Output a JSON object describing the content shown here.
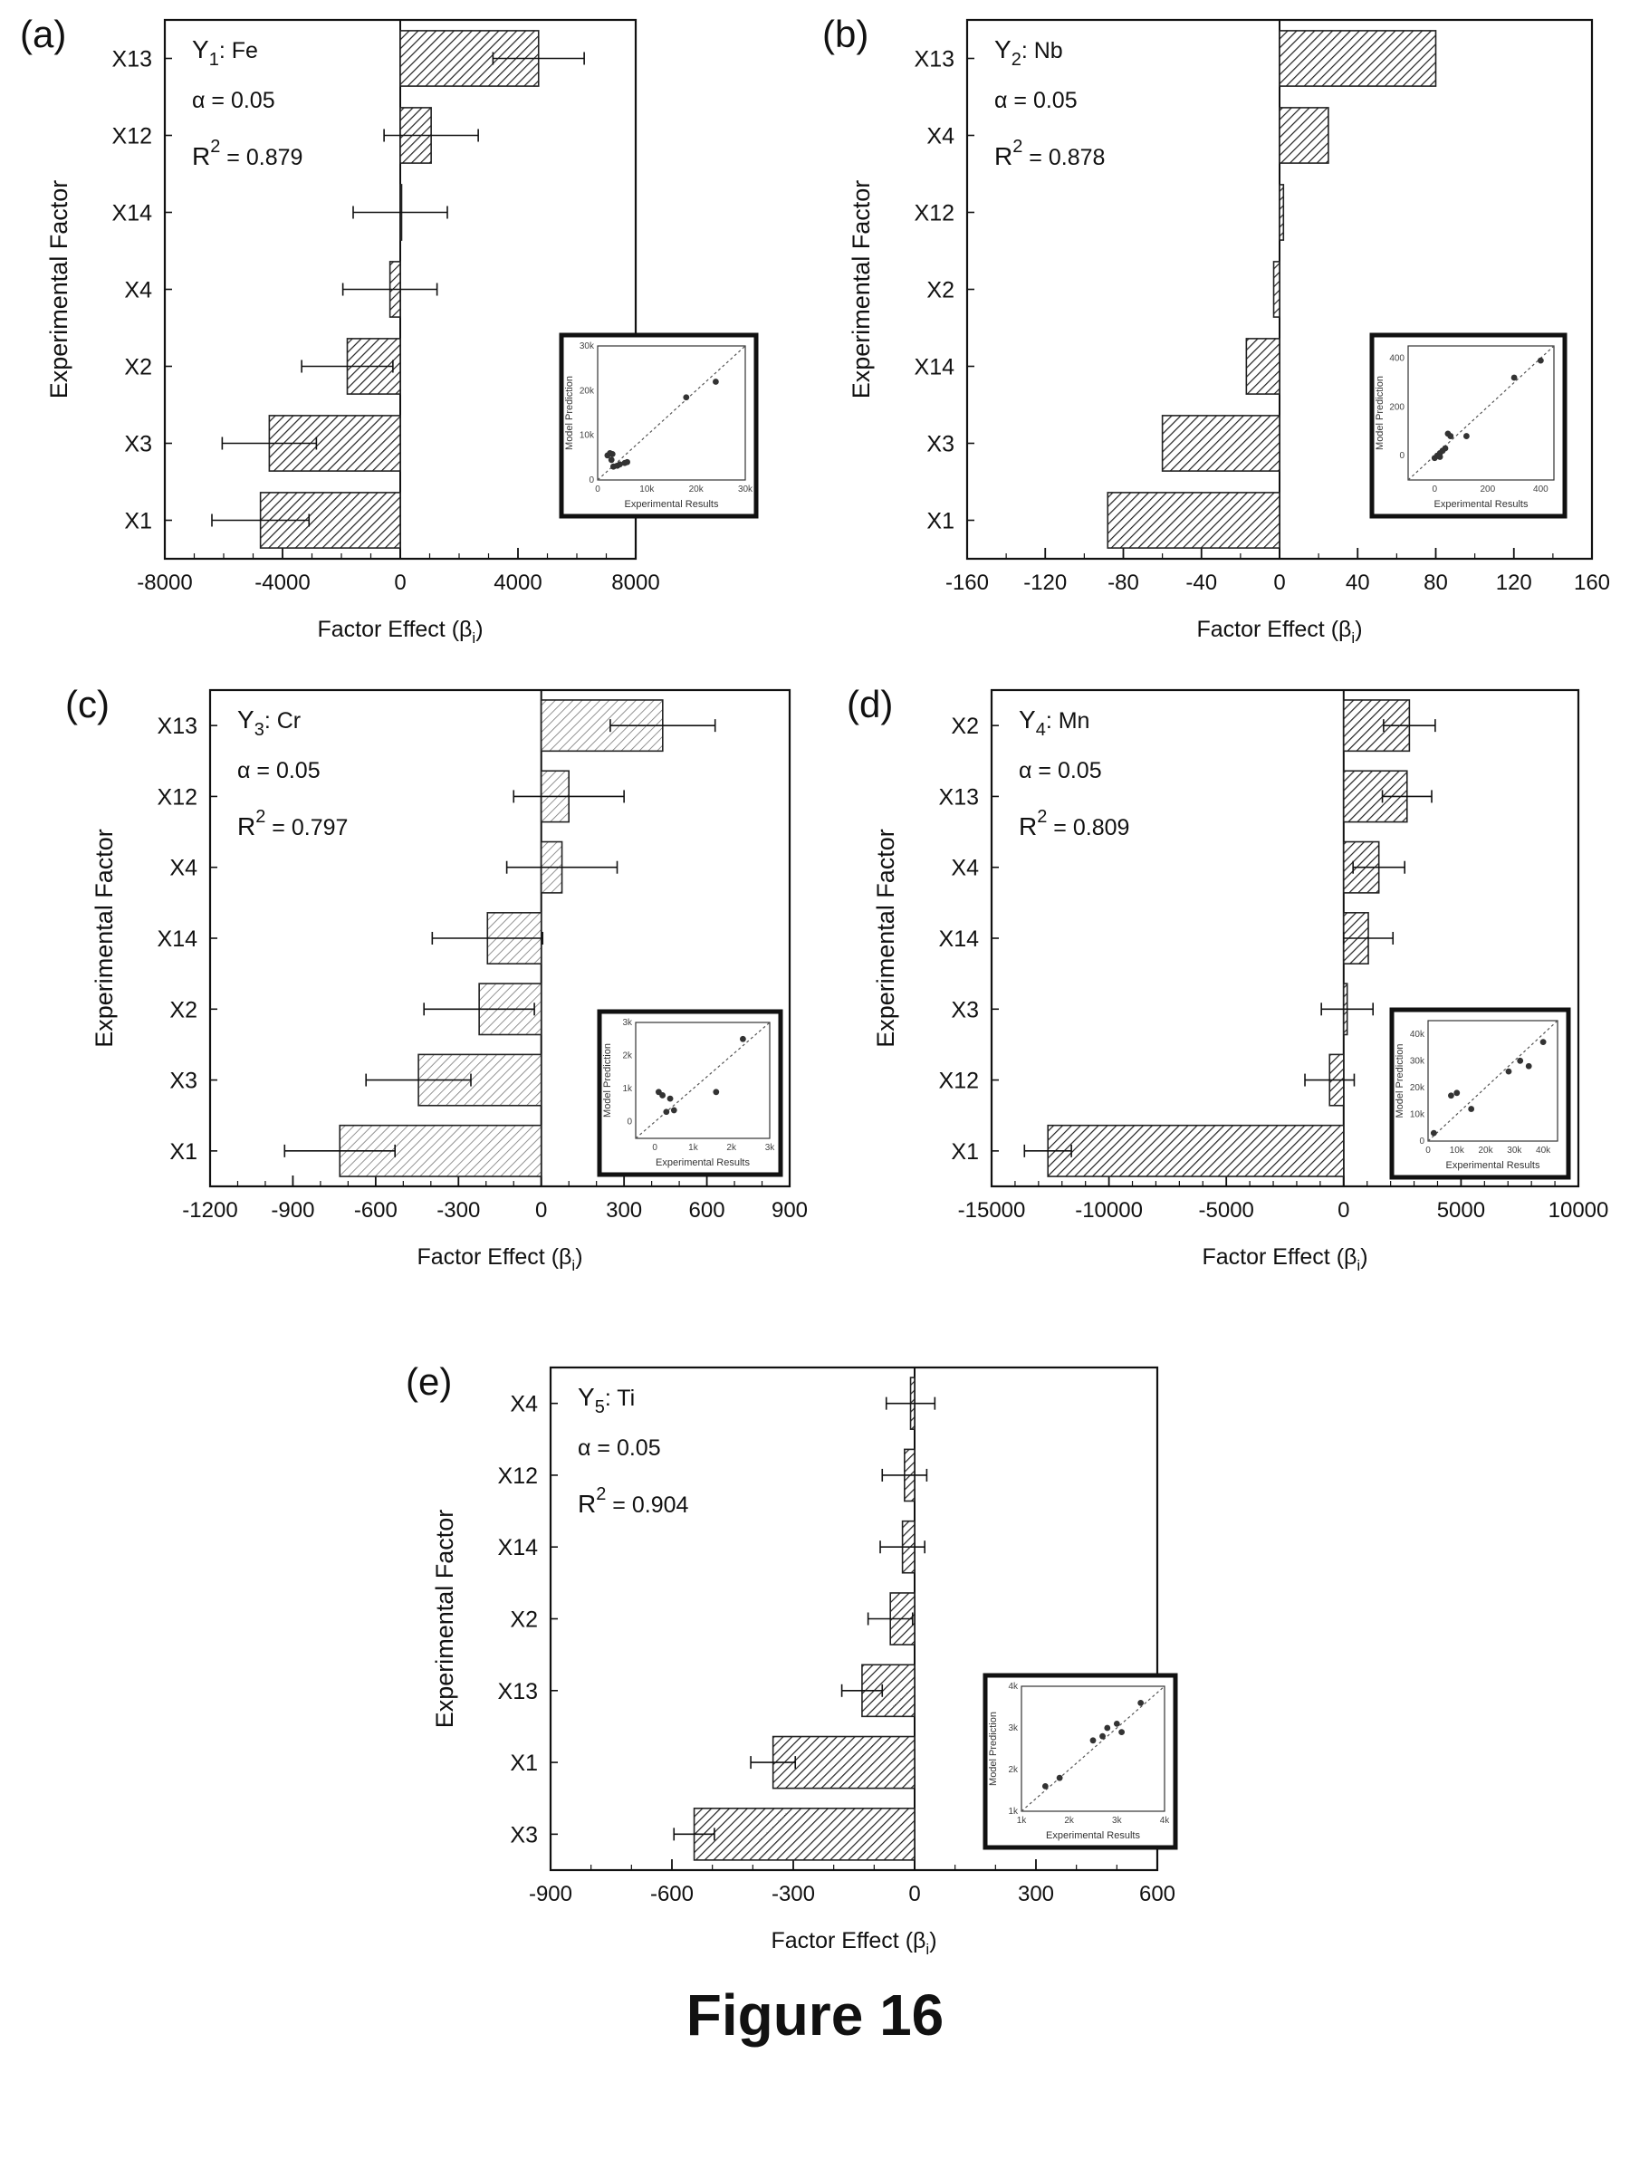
{
  "figure_caption": "Figure 16",
  "inset_labels": {
    "xlabel": "Experimental Results",
    "ylabel": "Model Prediction"
  },
  "chart_data": [
    {
      "panel": "(a)",
      "type": "bar",
      "orientation": "horizontal",
      "title_main": "Y",
      "title_sub": "1",
      "title_suffix": ": Fe",
      "alpha_text": "α = 0.05",
      "r2_main": "R",
      "r2_sup": "2",
      "r2_suffix": " = 0.879",
      "xlabel": "Factor Effect (β",
      "xlabel_sub": "i",
      "xlabel_end": ")",
      "ylabel": "Experimental Factor",
      "categories": [
        "X13",
        "X12",
        "X14",
        "X4",
        "X2",
        "X3",
        "X1"
      ],
      "values": [
        4700,
        1050,
        0,
        -350,
        -1800,
        -4450,
        -4750
      ],
      "errors": [
        1550,
        1600,
        1600,
        1600,
        1550,
        1600,
        1650
      ],
      "xlim": [
        -8000,
        8000
      ],
      "xticks": [
        -8000,
        -4000,
        0,
        4000,
        8000
      ],
      "xtick_labels": [
        "-8000",
        "-4000",
        "0",
        "4000",
        "8000"
      ],
      "minor_step": 1000,
      "inset": {
        "xlim": [
          0,
          30000
        ],
        "ylim": [
          0,
          30000
        ],
        "xticks": [
          0,
          10000,
          20000,
          30000
        ],
        "xtick_labels": [
          "0",
          "10k",
          "20k",
          "30k"
        ],
        "yticks": [
          0,
          10000,
          20000,
          30000
        ],
        "ytick_labels": [
          "0",
          "10k",
          "20k",
          "30k"
        ],
        "points": [
          [
            2000,
            5500
          ],
          [
            2500,
            6000
          ],
          [
            3000,
            5800
          ],
          [
            2800,
            4500
          ],
          [
            3200,
            3000
          ],
          [
            4000,
            3200
          ],
          [
            4500,
            3500
          ],
          [
            5500,
            3800
          ],
          [
            6000,
            4000
          ],
          [
            18000,
            18500
          ],
          [
            24000,
            22000
          ]
        ]
      }
    },
    {
      "panel": "(b)",
      "type": "bar",
      "orientation": "horizontal",
      "title_main": "Y",
      "title_sub": "2",
      "title_suffix": ": Nb",
      "alpha_text": "α = 0.05",
      "r2_main": "R",
      "r2_sup": "2",
      "r2_suffix": " = 0.878",
      "xlabel": "Factor Effect (β",
      "xlabel_sub": "i",
      "xlabel_end": ")",
      "ylabel": "Experimental Factor",
      "categories": [
        "X13",
        "X4",
        "X12",
        "X2",
        "X14",
        "X3",
        "X1"
      ],
      "values": [
        80,
        25,
        2,
        -3,
        -17,
        -60,
        -88
      ],
      "errors": [],
      "xlim": [
        -160,
        160
      ],
      "xticks": [
        -160,
        -120,
        -80,
        -40,
        0,
        40,
        80,
        120,
        160
      ],
      "xtick_labels": [
        "-160",
        "-120",
        "-80",
        "-40",
        "0",
        "40",
        "80",
        "120",
        "160"
      ],
      "minor_step": 20,
      "inset": {
        "xlim": [
          -100,
          450
        ],
        "ylim": [
          -100,
          450
        ],
        "xticks": [
          0,
          200,
          400
        ],
        "xtick_labels": [
          "0",
          "200",
          "400"
        ],
        "yticks": [
          0,
          200,
          400
        ],
        "ytick_labels": [
          "0",
          "200",
          "400"
        ],
        "points": [
          [
            0,
            -10
          ],
          [
            10,
            0
          ],
          [
            20,
            10
          ],
          [
            30,
            20
          ],
          [
            20,
            -5
          ],
          [
            40,
            30
          ],
          [
            50,
            90
          ],
          [
            60,
            80
          ],
          [
            120,
            80
          ],
          [
            300,
            320
          ],
          [
            400,
            390
          ]
        ]
      }
    },
    {
      "panel": "(c)",
      "type": "bar",
      "orientation": "horizontal",
      "title_main": "Y",
      "title_sub": "3",
      "title_suffix": ": Cr",
      "alpha_text": "α = 0.05",
      "r2_main": "R",
      "r2_sup": "2",
      "r2_suffix": " = 0.797",
      "xlabel": "Factor Effect (β",
      "xlabel_sub": "i",
      "xlabel_end": ")",
      "ylabel": "Experimental Factor",
      "categories": [
        "X13",
        "X12",
        "X4",
        "X14",
        "X2",
        "X3",
        "X1"
      ],
      "values": [
        440,
        100,
        75,
        -195,
        -225,
        -445,
        -730
      ],
      "errors": [
        190,
        200,
        200,
        200,
        200,
        190,
        200
      ],
      "xlim": [
        -1200,
        900
      ],
      "xticks": [
        -1200,
        -900,
        -600,
        -300,
        0,
        300,
        600,
        900
      ],
      "xtick_labels": [
        "-1200",
        "-900",
        "-600",
        "-300",
        "0",
        "300",
        "600",
        "900"
      ],
      "minor_step": 100,
      "inset": {
        "xlim": [
          -500,
          3000
        ],
        "ylim": [
          -500,
          3000
        ],
        "xticks": [
          0,
          1000,
          2000,
          3000
        ],
        "xtick_labels": [
          "0",
          "1k",
          "2k",
          "3k"
        ],
        "yticks": [
          0,
          1000,
          2000,
          3000
        ],
        "ytick_labels": [
          "0",
          "1k",
          "2k",
          "3k"
        ],
        "points": [
          [
            100,
            900
          ],
          [
            200,
            800
          ],
          [
            400,
            700
          ],
          [
            300,
            300
          ],
          [
            500,
            350
          ],
          [
            1600,
            900
          ],
          [
            2300,
            2500
          ]
        ]
      }
    },
    {
      "panel": "(d)",
      "type": "bar",
      "orientation": "horizontal",
      "title_main": "Y",
      "title_sub": "4",
      "title_suffix": ": Mn",
      "alpha_text": "α = 0.05",
      "r2_main": "R",
      "r2_sup": "2",
      "r2_suffix": " = 0.809",
      "xlabel": "Factor Effect (β",
      "xlabel_sub": "i",
      "xlabel_end": ")",
      "ylabel": "Experimental Factor",
      "categories": [
        "X2",
        "X13",
        "X4",
        "X14",
        "X3",
        "X12",
        "X1"
      ],
      "values": [
        2800,
        2700,
        1500,
        1050,
        150,
        -600,
        -12600
      ],
      "errors": [
        1100,
        1050,
        1100,
        1050,
        1100,
        1050,
        1000
      ],
      "xlim": [
        -15000,
        10000
      ],
      "xticks": [
        -15000,
        -10000,
        -5000,
        0,
        5000,
        10000
      ],
      "xtick_labels": [
        "-15000",
        "-10000",
        "-5000",
        "0",
        "5000",
        "10000"
      ],
      "minor_step": 1000,
      "inset": {
        "xlim": [
          0,
          45000
        ],
        "ylim": [
          0,
          45000
        ],
        "xticks": [
          0,
          10000,
          20000,
          30000,
          40000
        ],
        "xtick_labels": [
          "0",
          "10k",
          "20k",
          "30k",
          "40k"
        ],
        "yticks": [
          0,
          10000,
          20000,
          30000,
          40000
        ],
        "ytick_labels": [
          "0",
          "10k",
          "20k",
          "30k",
          "40k"
        ],
        "points": [
          [
            2000,
            3000
          ],
          [
            8000,
            17000
          ],
          [
            10000,
            18000
          ],
          [
            15000,
            12000
          ],
          [
            28000,
            26000
          ],
          [
            32000,
            30000
          ],
          [
            35000,
            28000
          ],
          [
            40000,
            37000
          ]
        ]
      }
    },
    {
      "panel": "(e)",
      "type": "bar",
      "orientation": "horizontal",
      "title_main": "Y",
      "title_sub": "5",
      "title_suffix": ": Ti",
      "alpha_text": "α = 0.05",
      "r2_main": "R",
      "r2_sup": "2",
      "r2_suffix": " = 0.904",
      "xlabel": "Factor Effect (β",
      "xlabel_sub": "i",
      "xlabel_end": ")",
      "ylabel": "Experimental Factor",
      "categories": [
        "X4",
        "X12",
        "X14",
        "X2",
        "X13",
        "X1",
        "X3"
      ],
      "values": [
        -10,
        -25,
        -30,
        -60,
        -130,
        -350,
        -545
      ],
      "errors": [
        60,
        55,
        55,
        55,
        50,
        55,
        50
      ],
      "xlim": [
        -900,
        600
      ],
      "xticks": [
        -900,
        -600,
        -300,
        0,
        300,
        600
      ],
      "xtick_labels": [
        "-900",
        "-600",
        "-300",
        "0",
        "300",
        "600"
      ],
      "minor_step": 100,
      "inset": {
        "xlim": [
          1000,
          4000
        ],
        "ylim": [
          1000,
          4000
        ],
        "xticks": [
          1000,
          2000,
          3000,
          4000
        ],
        "xtick_labels": [
          "1k",
          "2k",
          "3k",
          "4k"
        ],
        "yticks": [
          1000,
          2000,
          3000,
          4000
        ],
        "ytick_labels": [
          "1k",
          "2k",
          "3k",
          "4k"
        ],
        "points": [
          [
            1500,
            1600
          ],
          [
            1800,
            1800
          ],
          [
            2500,
            2700
          ],
          [
            2700,
            2800
          ],
          [
            2800,
            3000
          ],
          [
            3000,
            3100
          ],
          [
            3100,
            2900
          ],
          [
            3500,
            3600
          ]
        ]
      }
    }
  ]
}
